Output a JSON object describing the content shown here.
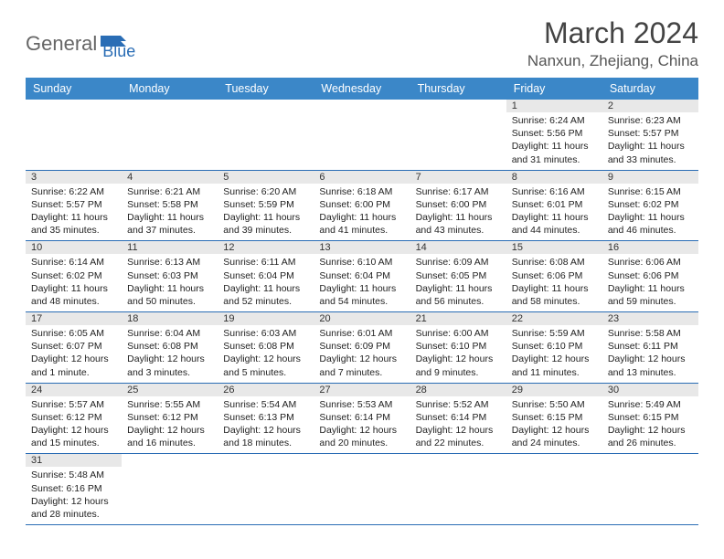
{
  "logo": {
    "text1": "General",
    "text2": "Blue"
  },
  "title": "March 2024",
  "location": "Nanxun, Zhejiang, China",
  "header_bg": "#3b87c8",
  "divider_color": "#2a6db5",
  "daynum_bg": "#e8e8e8",
  "weekdays": [
    "Sunday",
    "Monday",
    "Tuesday",
    "Wednesday",
    "Thursday",
    "Friday",
    "Saturday"
  ],
  "weeks": [
    [
      null,
      null,
      null,
      null,
      null,
      {
        "n": "1",
        "sr": "Sunrise: 6:24 AM",
        "ss": "Sunset: 5:56 PM",
        "dl": "Daylight: 11 hours and 31 minutes."
      },
      {
        "n": "2",
        "sr": "Sunrise: 6:23 AM",
        "ss": "Sunset: 5:57 PM",
        "dl": "Daylight: 11 hours and 33 minutes."
      }
    ],
    [
      {
        "n": "3",
        "sr": "Sunrise: 6:22 AM",
        "ss": "Sunset: 5:57 PM",
        "dl": "Daylight: 11 hours and 35 minutes."
      },
      {
        "n": "4",
        "sr": "Sunrise: 6:21 AM",
        "ss": "Sunset: 5:58 PM",
        "dl": "Daylight: 11 hours and 37 minutes."
      },
      {
        "n": "5",
        "sr": "Sunrise: 6:20 AM",
        "ss": "Sunset: 5:59 PM",
        "dl": "Daylight: 11 hours and 39 minutes."
      },
      {
        "n": "6",
        "sr": "Sunrise: 6:18 AM",
        "ss": "Sunset: 6:00 PM",
        "dl": "Daylight: 11 hours and 41 minutes."
      },
      {
        "n": "7",
        "sr": "Sunrise: 6:17 AM",
        "ss": "Sunset: 6:00 PM",
        "dl": "Daylight: 11 hours and 43 minutes."
      },
      {
        "n": "8",
        "sr": "Sunrise: 6:16 AM",
        "ss": "Sunset: 6:01 PM",
        "dl": "Daylight: 11 hours and 44 minutes."
      },
      {
        "n": "9",
        "sr": "Sunrise: 6:15 AM",
        "ss": "Sunset: 6:02 PM",
        "dl": "Daylight: 11 hours and 46 minutes."
      }
    ],
    [
      {
        "n": "10",
        "sr": "Sunrise: 6:14 AM",
        "ss": "Sunset: 6:02 PM",
        "dl": "Daylight: 11 hours and 48 minutes."
      },
      {
        "n": "11",
        "sr": "Sunrise: 6:13 AM",
        "ss": "Sunset: 6:03 PM",
        "dl": "Daylight: 11 hours and 50 minutes."
      },
      {
        "n": "12",
        "sr": "Sunrise: 6:11 AM",
        "ss": "Sunset: 6:04 PM",
        "dl": "Daylight: 11 hours and 52 minutes."
      },
      {
        "n": "13",
        "sr": "Sunrise: 6:10 AM",
        "ss": "Sunset: 6:04 PM",
        "dl": "Daylight: 11 hours and 54 minutes."
      },
      {
        "n": "14",
        "sr": "Sunrise: 6:09 AM",
        "ss": "Sunset: 6:05 PM",
        "dl": "Daylight: 11 hours and 56 minutes."
      },
      {
        "n": "15",
        "sr": "Sunrise: 6:08 AM",
        "ss": "Sunset: 6:06 PM",
        "dl": "Daylight: 11 hours and 58 minutes."
      },
      {
        "n": "16",
        "sr": "Sunrise: 6:06 AM",
        "ss": "Sunset: 6:06 PM",
        "dl": "Daylight: 11 hours and 59 minutes."
      }
    ],
    [
      {
        "n": "17",
        "sr": "Sunrise: 6:05 AM",
        "ss": "Sunset: 6:07 PM",
        "dl": "Daylight: 12 hours and 1 minute."
      },
      {
        "n": "18",
        "sr": "Sunrise: 6:04 AM",
        "ss": "Sunset: 6:08 PM",
        "dl": "Daylight: 12 hours and 3 minutes."
      },
      {
        "n": "19",
        "sr": "Sunrise: 6:03 AM",
        "ss": "Sunset: 6:08 PM",
        "dl": "Daylight: 12 hours and 5 minutes."
      },
      {
        "n": "20",
        "sr": "Sunrise: 6:01 AM",
        "ss": "Sunset: 6:09 PM",
        "dl": "Daylight: 12 hours and 7 minutes."
      },
      {
        "n": "21",
        "sr": "Sunrise: 6:00 AM",
        "ss": "Sunset: 6:10 PM",
        "dl": "Daylight: 12 hours and 9 minutes."
      },
      {
        "n": "22",
        "sr": "Sunrise: 5:59 AM",
        "ss": "Sunset: 6:10 PM",
        "dl": "Daylight: 12 hours and 11 minutes."
      },
      {
        "n": "23",
        "sr": "Sunrise: 5:58 AM",
        "ss": "Sunset: 6:11 PM",
        "dl": "Daylight: 12 hours and 13 minutes."
      }
    ],
    [
      {
        "n": "24",
        "sr": "Sunrise: 5:57 AM",
        "ss": "Sunset: 6:12 PM",
        "dl": "Daylight: 12 hours and 15 minutes."
      },
      {
        "n": "25",
        "sr": "Sunrise: 5:55 AM",
        "ss": "Sunset: 6:12 PM",
        "dl": "Daylight: 12 hours and 16 minutes."
      },
      {
        "n": "26",
        "sr": "Sunrise: 5:54 AM",
        "ss": "Sunset: 6:13 PM",
        "dl": "Daylight: 12 hours and 18 minutes."
      },
      {
        "n": "27",
        "sr": "Sunrise: 5:53 AM",
        "ss": "Sunset: 6:14 PM",
        "dl": "Daylight: 12 hours and 20 minutes."
      },
      {
        "n": "28",
        "sr": "Sunrise: 5:52 AM",
        "ss": "Sunset: 6:14 PM",
        "dl": "Daylight: 12 hours and 22 minutes."
      },
      {
        "n": "29",
        "sr": "Sunrise: 5:50 AM",
        "ss": "Sunset: 6:15 PM",
        "dl": "Daylight: 12 hours and 24 minutes."
      },
      {
        "n": "30",
        "sr": "Sunrise: 5:49 AM",
        "ss": "Sunset: 6:15 PM",
        "dl": "Daylight: 12 hours and 26 minutes."
      }
    ],
    [
      {
        "n": "31",
        "sr": "Sunrise: 5:48 AM",
        "ss": "Sunset: 6:16 PM",
        "dl": "Daylight: 12 hours and 28 minutes."
      },
      null,
      null,
      null,
      null,
      null,
      null
    ]
  ]
}
